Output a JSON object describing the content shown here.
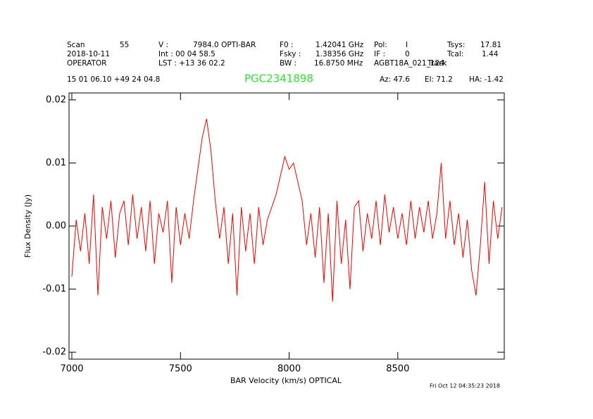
{
  "chart_data": {
    "type": "line",
    "title": "PGC2341898",
    "title_color": "#33dd33",
    "annotations": [
      "Scan",
      "55",
      "V    :",
      "7984.0 OPTI-BAR",
      "F0    :",
      "1.42041 GHz",
      "Pol:",
      "I",
      "Tsys:",
      "17.81",
      "2018-10-11",
      "Int  :  00 04 58.5",
      "Fsky :",
      "1.38356 GHz",
      "IF :",
      "0",
      "Tcal:",
      "1.44",
      "OPERATOR",
      "LST : +13 36 02.2",
      "BW    :",
      "16.8750 MHz",
      "AGBT18A_021_124",
      "Track",
      "15 01 06.10  +49 24 04.8",
      "Az:  47.6",
      "El:  71.2",
      "HA: -1.42"
    ],
    "timestamp": "Fri Oct 12 04:35:23 2018",
    "x_label": "BAR Velocity (km/s) OPTICAL",
    "y_label": "Flux Density (Jy)",
    "xlim": [
      6987,
      8990
    ],
    "ylim": [
      -0.0211,
      0.0211
    ],
    "xticks": [
      7000,
      7500,
      8000,
      8500
    ],
    "yticks": [
      -0.02,
      -0.01,
      {
        "value": 0,
        "label": "0.00"
      },
      0.01,
      0.02
    ],
    "x": [
      7000,
      7020,
      7040,
      7060,
      7080,
      7100,
      7120,
      7140,
      7160,
      7180,
      7200,
      7220,
      7240,
      7260,
      7280,
      7300,
      7320,
      7340,
      7360,
      7380,
      7400,
      7420,
      7440,
      7460,
      7480,
      7500,
      7520,
      7540,
      7560,
      7580,
      7600,
      7620,
      7640,
      7660,
      7680,
      7700,
      7720,
      7740,
      7760,
      7780,
      7800,
      7820,
      7840,
      7860,
      7880,
      7900,
      7920,
      7940,
      7960,
      7980,
      8000,
      8020,
      8040,
      8060,
      8080,
      8100,
      8120,
      8140,
      8160,
      8180,
      8200,
      8220,
      8240,
      8260,
      8280,
      8300,
      8320,
      8340,
      8360,
      8380,
      8400,
      8420,
      8440,
      8460,
      8480,
      8500,
      8520,
      8540,
      8560,
      8580,
      8600,
      8620,
      8640,
      8660,
      8680,
      8700,
      8720,
      8740,
      8760,
      8780,
      8800,
      8820,
      8840,
      8860,
      8880,
      8900,
      8920,
      8940,
      8960,
      8980
    ],
    "series": [
      {
        "name": "spectrum",
        "color": "#ee0000",
        "values": [
          -0.008,
          0.001,
          -0.004,
          0.002,
          -0.006,
          0.005,
          -0.011,
          0.003,
          -0.002,
          0.004,
          -0.005,
          0.002,
          0.004,
          -0.003,
          0.005,
          -0.002,
          0.003,
          -0.004,
          0.004,
          -0.006,
          0.002,
          -0.001,
          0.004,
          -0.009,
          0.003,
          -0.003,
          0.002,
          -0.002,
          0.004,
          0.009,
          0.014,
          0.017,
          0.012,
          0.004,
          -0.002,
          0.003,
          -0.006,
          0.002,
          -0.011,
          0.003,
          -0.004,
          0.002,
          -0.006,
          0.003,
          -0.003,
          0.001,
          0.003,
          0.005,
          0.008,
          0.011,
          0.009,
          0.01,
          0.007,
          0.004,
          -0.003,
          0.002,
          -0.005,
          0.003,
          -0.009,
          0.002,
          -0.012,
          0.004,
          -0.006,
          0.001,
          -0.01,
          0.003,
          0.004,
          -0.004,
          0.002,
          -0.002,
          0.004,
          -0.003,
          0.005,
          -0.001,
          0.003,
          -0.002,
          0.002,
          -0.003,
          0.004,
          -0.002,
          0.003,
          -0.001,
          0.004,
          -0.002,
          0.002,
          0.01,
          -0.002,
          0.004,
          -0.003,
          0.002,
          -0.005,
          0.001,
          -0.007,
          -0.011,
          -0.003,
          0.007,
          -0.006,
          0.004,
          -0.002,
          0.003
        ]
      }
    ]
  }
}
